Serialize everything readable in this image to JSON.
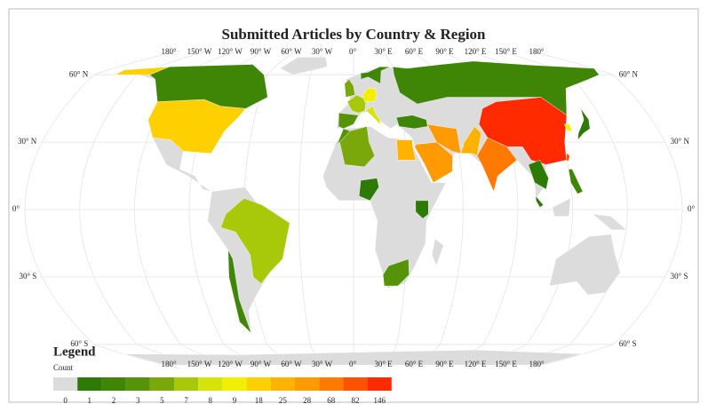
{
  "title": "Submitted Articles by Country & Region",
  "longitude_labels": [
    "180°",
    "150° W",
    "120° W",
    "90° W",
    "60° W",
    "30° W",
    "0°",
    "30° E",
    "60° E",
    "90° E",
    "120° E",
    "150° E",
    "180°"
  ],
  "latitude_labels": [
    "60° N",
    "30° N",
    "0°",
    "30° S",
    "60° S"
  ],
  "legend": {
    "title": "Legend",
    "subtitle": "Count",
    "values": [
      0,
      1,
      2,
      3,
      5,
      7,
      8,
      9,
      18,
      25,
      28,
      68,
      82,
      146
    ],
    "colors": [
      "#dcdcdc",
      "#2e7a06",
      "#3f8506",
      "#559308",
      "#7aa80a",
      "#a8c80a",
      "#d6e40c",
      "#f2f000",
      "#ffd000",
      "#ffb300",
      "#ff9a00",
      "#ff7a00",
      "#ff5200",
      "#ff2a00"
    ]
  },
  "region_values": [
    18,
    18,
    2,
    7,
    2,
    2,
    146,
    68,
    25,
    28,
    28,
    25,
    2,
    5,
    3,
    1,
    1,
    3,
    5,
    3,
    7,
    9,
    8,
    2,
    1,
    9,
    82,
    1,
    2,
    1
  ]
}
